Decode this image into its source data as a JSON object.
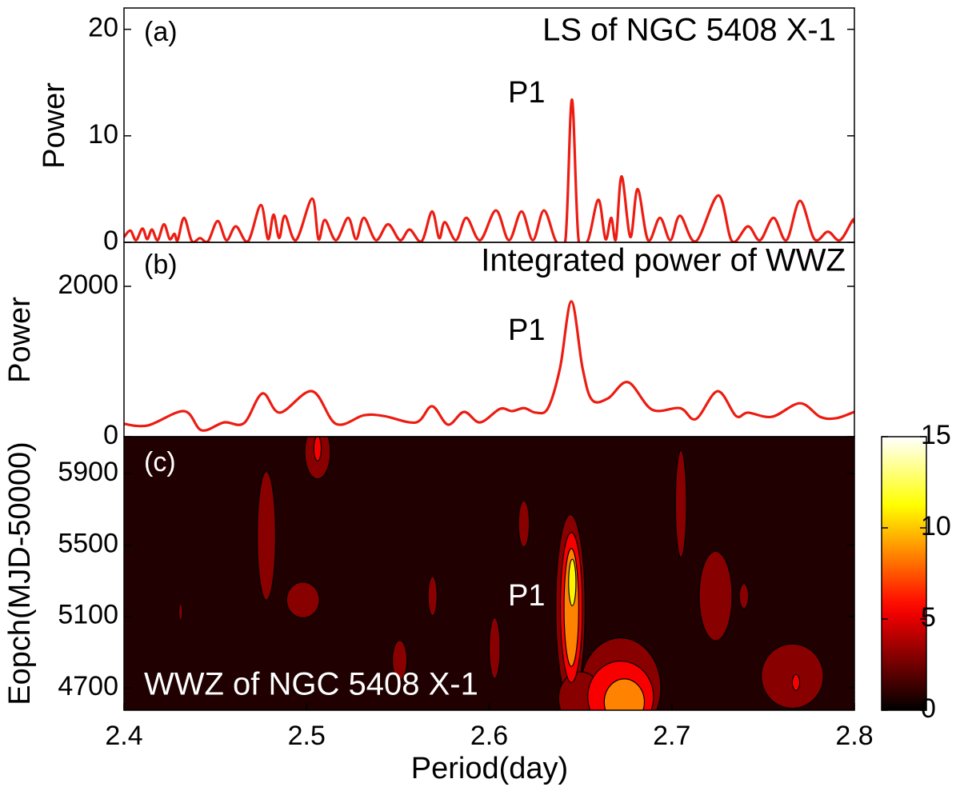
{
  "chart_data": [
    {
      "type": "line",
      "panel_label": "(a)",
      "title": "LS of NGC 5408 X-1",
      "annotation": "P1",
      "ylabel": "Power",
      "xlim": [
        2.4,
        2.8
      ],
      "ylim": [
        0,
        22
      ],
      "yticks": [
        0,
        10,
        20
      ],
      "x": [
        2.4,
        2.4035,
        2.4066,
        2.4101,
        2.4127,
        2.4153,
        2.4184,
        2.4219,
        2.425,
        2.4276,
        2.4294,
        2.4329,
        2.4372,
        2.4416,
        2.446,
        2.4513,
        2.4561,
        2.4613,
        2.4679,
        2.4749,
        2.4789,
        2.4819,
        2.485,
        2.4881,
        2.4942,
        2.503,
        2.5065,
        2.51,
        2.5161,
        2.5227,
        2.5271,
        2.5314,
        2.538,
        2.5446,
        2.5512,
        2.5564,
        2.563,
        2.5687,
        2.5726,
        2.5757,
        2.5818,
        2.5875,
        2.595,
        2.6037,
        2.6108,
        2.6177,
        2.6239,
        2.63,
        2.6366,
        2.6418,
        2.6453,
        2.6489,
        2.6541,
        2.6598,
        2.6637,
        2.6668,
        2.6694,
        2.6725,
        2.6773,
        2.6813,
        2.687,
        2.6935,
        2.6992,
        2.7045,
        2.7132,
        2.7255,
        2.733,
        2.7417,
        2.7483,
        2.7557,
        2.7628,
        2.7702,
        2.7781,
        2.7855,
        2.7921,
        2.7991,
        2.8
      ],
      "series": [
        {
          "color": "#ec1c12",
          "values": [
            0.5,
            1.1,
            0.2,
            1.3,
            0.3,
            1.2,
            0.2,
            1.7,
            0.3,
            0.8,
            0.2,
            2.3,
            0.1,
            0.4,
            0.1,
            2.0,
            0.2,
            1.5,
            0.1,
            3.5,
            0.3,
            2.6,
            0.4,
            2.5,
            0.2,
            4.1,
            0.3,
            2.1,
            0.2,
            2.3,
            0.3,
            2.3,
            0.2,
            1.7,
            0.2,
            1.2,
            0.1,
            2.9,
            0.4,
            1.9,
            0.2,
            2.3,
            0.2,
            3.0,
            0.2,
            2.9,
            0.2,
            3.0,
            0.1,
            0.3,
            13.4,
            0.3,
            0.2,
            4.0,
            0.3,
            2.3,
            0.3,
            6.2,
            0.5,
            5.0,
            0.2,
            2.3,
            0.2,
            2.5,
            0.1,
            4.4,
            0.1,
            1.5,
            0.2,
            2.3,
            0.2,
            3.9,
            0.3,
            1.0,
            0.2,
            2.1,
            1.8
          ]
        }
      ]
    },
    {
      "type": "line",
      "panel_label": "(b)",
      "title": "Integrated power of WWZ",
      "annotation": "P1",
      "ylabel": "Power",
      "xlim": [
        2.4,
        2.8
      ],
      "ylim": [
        0,
        2585
      ],
      "yticks": [
        0,
        2000
      ],
      "x": [
        2.4,
        2.4131,
        2.4329,
        2.4425,
        2.4548,
        2.4657,
        2.4758,
        2.4854,
        2.503,
        2.5161,
        2.5314,
        2.5424,
        2.5599,
        2.5687,
        2.5774,
        2.5862,
        2.595,
        2.6059,
        2.6125,
        2.6191,
        2.6256,
        2.6322,
        2.6388,
        2.645,
        2.6511,
        2.6563,
        2.6651,
        2.676,
        2.6892,
        2.7045,
        2.7132,
        2.7251,
        2.7352,
        2.7417,
        2.7549,
        2.7702,
        2.7812,
        2.7899,
        2.8
      ],
      "series": [
        {
          "color": "#ec1c12",
          "values": [
            170,
            150,
            340,
            85,
            190,
            180,
            575,
            320,
            605,
            170,
            285,
            275,
            190,
            405,
            160,
            330,
            190,
            370,
            340,
            380,
            320,
            380,
            915,
            1800,
            915,
            490,
            510,
            725,
            360,
            380,
            235,
            605,
            275,
            320,
            265,
            445,
            265,
            245,
            330
          ]
        }
      ]
    },
    {
      "type": "contour",
      "panel_label": "(c)",
      "title": "WWZ of NGC 5408 X-1",
      "annotation": "P1",
      "ylabel": "Eopch(MJD-50000)",
      "xlabel": "Period(day)",
      "xlim": [
        2.4,
        2.8
      ],
      "xticks": [
        2.4,
        2.5,
        2.6,
        2.7,
        2.8
      ],
      "ylim": [
        4575,
        6106
      ],
      "yticks": [
        4700,
        5100,
        5500,
        5900
      ],
      "colormap": "hot",
      "clim": [
        0,
        15
      ],
      "cticks": [
        0,
        5,
        10,
        15
      ],
      "blobs": [
        {
          "x": 2.506,
          "y": 6020,
          "rx": 0.007,
          "ry": 150,
          "level": 3
        },
        {
          "x": 2.478,
          "y": 5551,
          "rx": 0.005,
          "ry": 360,
          "level": 3
        },
        {
          "x": 2.498,
          "y": 5192,
          "rx": 0.009,
          "ry": 100,
          "level": 3
        },
        {
          "x": 2.431,
          "y": 5125,
          "rx": 0.001,
          "ry": 50,
          "level": 3
        },
        {
          "x": 2.551,
          "y": 4856,
          "rx": 0.004,
          "ry": 110,
          "level": 3
        },
        {
          "x": 2.569,
          "y": 5214,
          "rx": 0.0025,
          "ry": 110,
          "level": 3
        },
        {
          "x": 2.603,
          "y": 4923,
          "rx": 0.003,
          "ry": 170,
          "level": 3
        },
        {
          "x": 2.619,
          "y": 5618,
          "rx": 0.003,
          "ry": 130,
          "level": 3
        },
        {
          "x": 2.705,
          "y": 5730,
          "rx": 0.003,
          "ry": 300,
          "level": 3
        },
        {
          "x": 2.724,
          "y": 5214,
          "rx": 0.009,
          "ry": 250,
          "level": 3
        },
        {
          "x": 2.7395,
          "y": 5214,
          "rx": 0.0025,
          "ry": 70,
          "level": 3
        },
        {
          "x": 2.766,
          "y": 4766,
          "rx": 0.017,
          "ry": 180,
          "level": 3
        },
        {
          "x": 2.6445,
          "y": 5150,
          "rx": 0.008,
          "ry": 520,
          "level": 3
        },
        {
          "x": 2.672,
          "y": 4700,
          "rx": 0.022,
          "ry": 280,
          "level": 3
        },
        {
          "x": 2.65,
          "y": 4640,
          "rx": 0.012,
          "ry": 150,
          "level": 3
        },
        {
          "x": 2.506,
          "y": 6040,
          "rx": 0.002,
          "ry": 70,
          "level": 5.5
        },
        {
          "x": 2.768,
          "y": 4730,
          "rx": 0.002,
          "ry": 45,
          "level": 5.5
        },
        {
          "x": 2.645,
          "y": 5150,
          "rx": 0.006,
          "ry": 420,
          "level": 5.5
        },
        {
          "x": 2.672,
          "y": 4650,
          "rx": 0.018,
          "ry": 200,
          "level": 5.5
        },
        {
          "x": 2.645,
          "y": 5150,
          "rx": 0.004,
          "ry": 330,
          "level": 8.5
        },
        {
          "x": 2.674,
          "y": 4620,
          "rx": 0.011,
          "ry": 130,
          "level": 8.5
        },
        {
          "x": 2.6455,
          "y": 5290,
          "rx": 0.002,
          "ry": 130,
          "level": 11
        }
      ]
    }
  ]
}
